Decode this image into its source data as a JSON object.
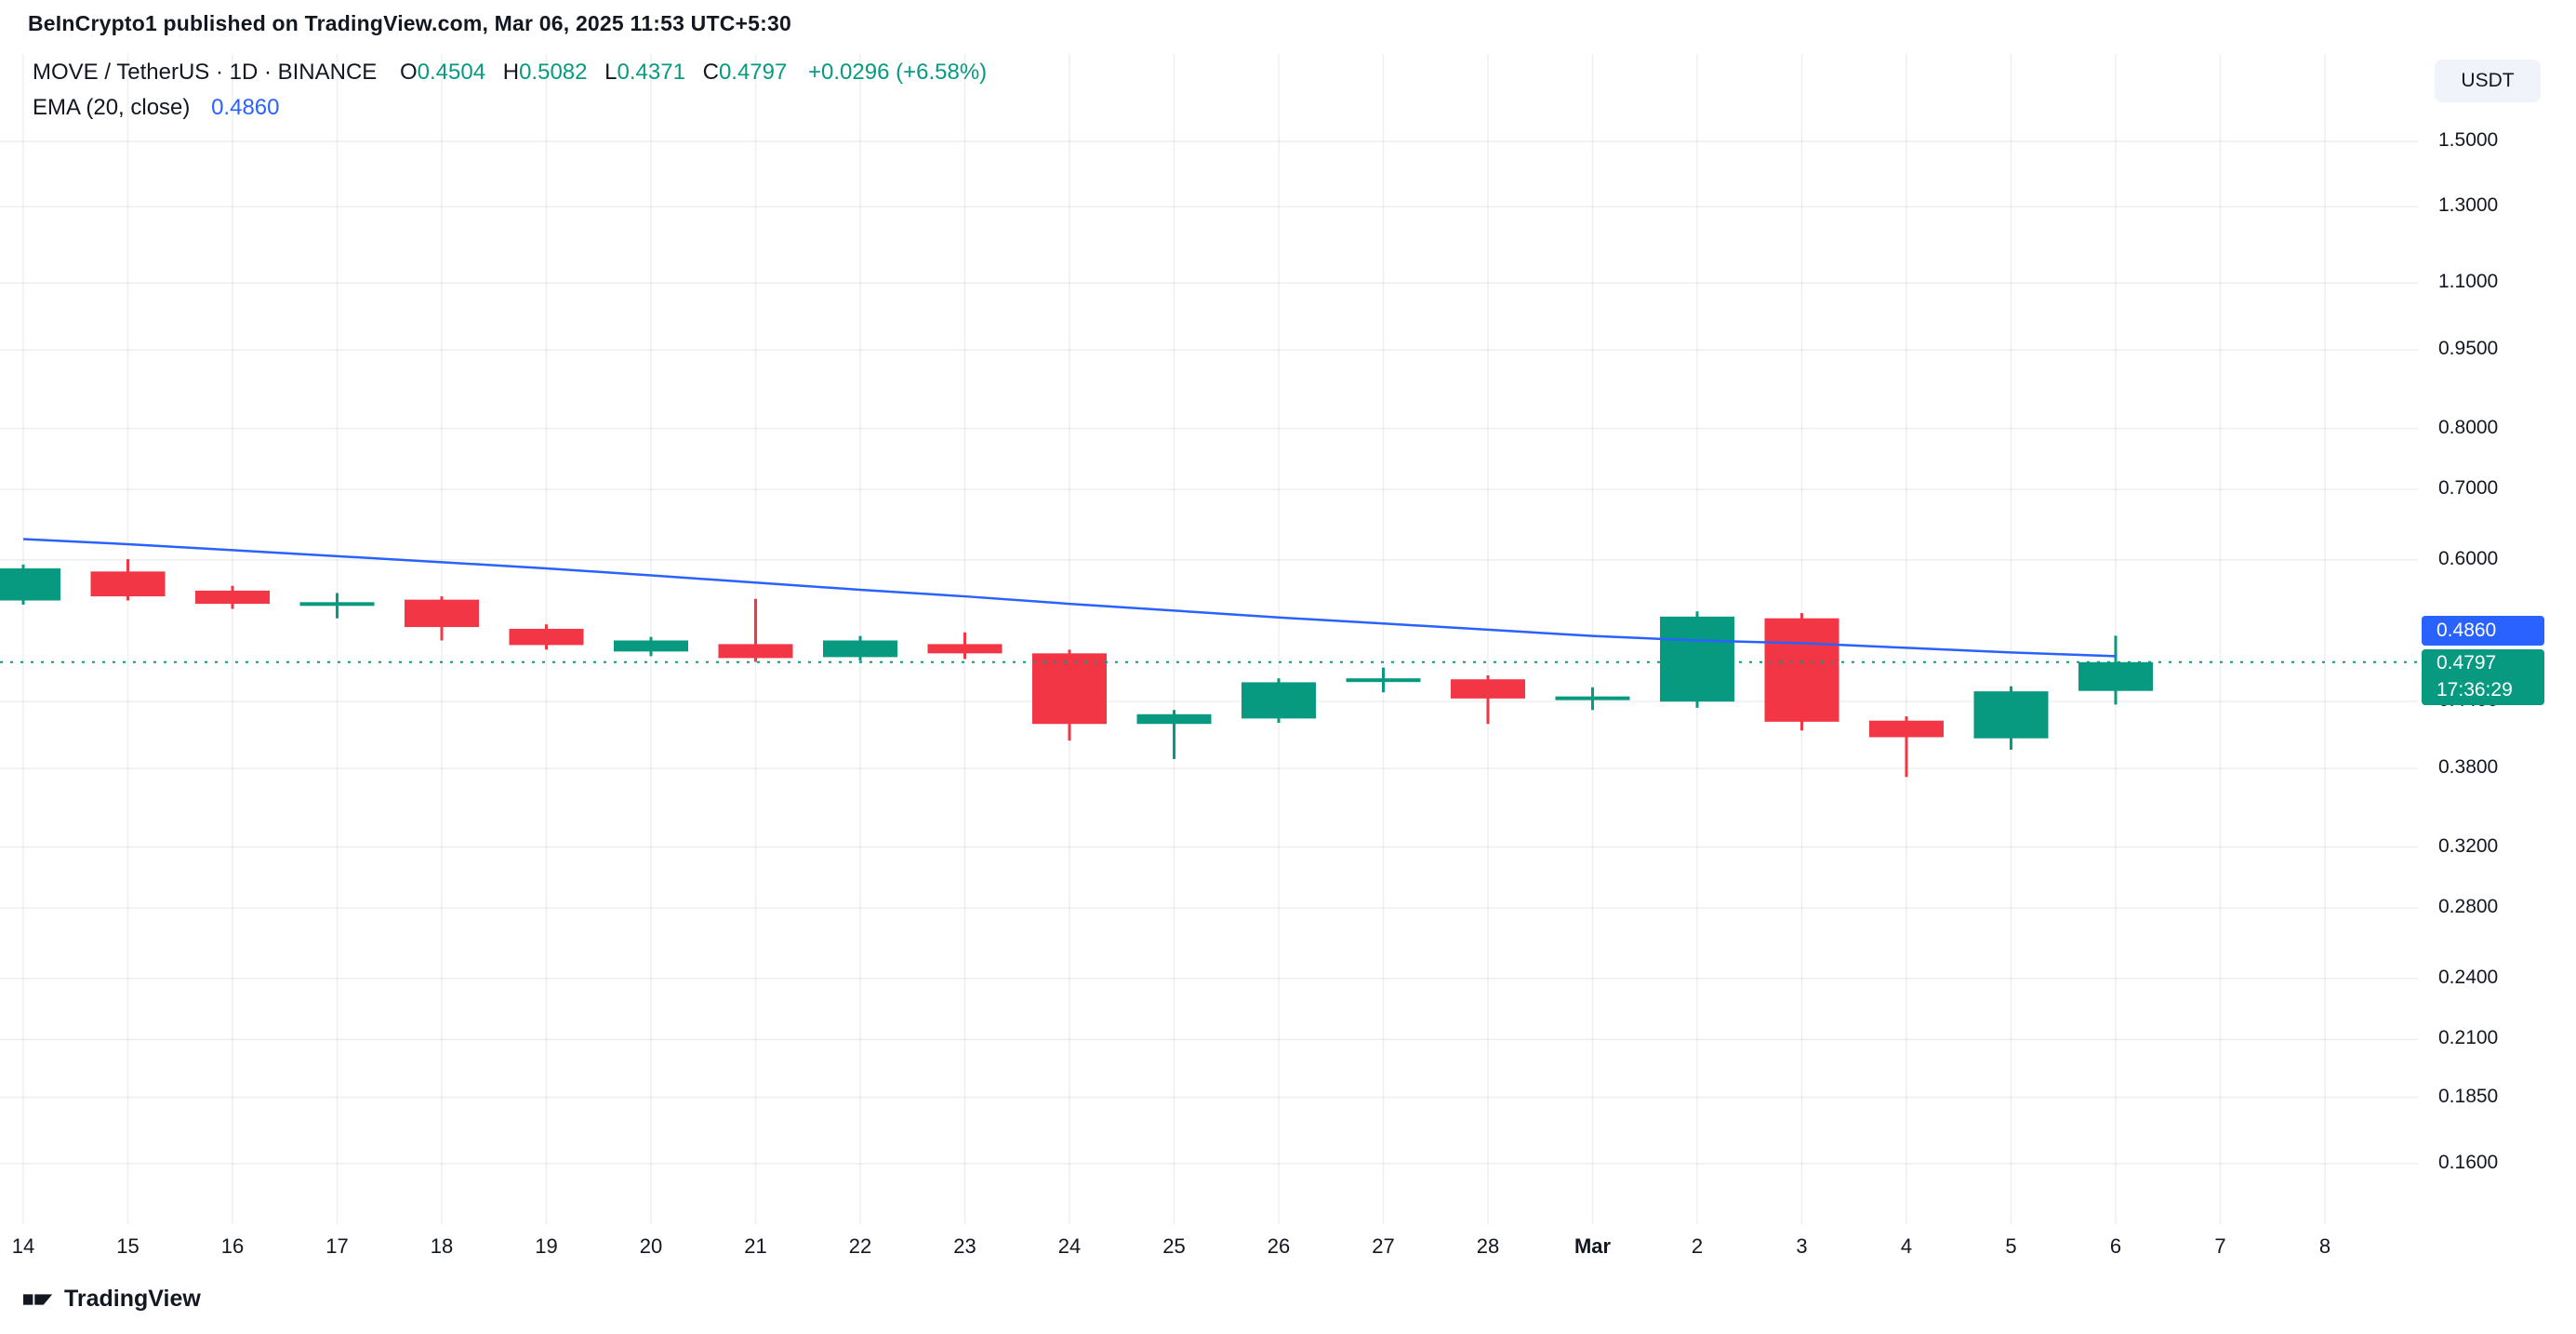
{
  "header": {
    "attribution": "BeInCrypto1 published on TradingView.com, Mar 06, 2025 11:53 UTC+5:30"
  },
  "top_right": {
    "currency_button": "USDT"
  },
  "legend": {
    "symbol_line": {
      "title": "MOVE / TetherUS · 1D · BINANCE",
      "open_label": "O",
      "open_value": "0.4504",
      "high_label": "H",
      "high_value": "0.5082",
      "low_label": "L",
      "low_value": "0.4371",
      "close_label": "C",
      "close_value": "0.4797",
      "change": "+0.0296 (+6.58%)"
    },
    "indicator_line": {
      "name": "EMA (20, close)",
      "value": "0.4860"
    }
  },
  "price_scale": {
    "ema_badge_value": "0.4860",
    "last_badge_price": "0.4797",
    "last_badge_countdown": "17:36:29"
  },
  "footer": {
    "brand": "TradingView"
  },
  "chart_data": {
    "type": "candlestick",
    "title": "MOVE / TetherUS · 1D · BINANCE",
    "pair": "MOVE/USDT",
    "interval": "1D",
    "exchange": "BINANCE",
    "scale": "logarithmic",
    "y_ticks": [
      {
        "label": "1.5000",
        "value": 1.5
      },
      {
        "label": "1.3000",
        "value": 1.3
      },
      {
        "label": "1.1000",
        "value": 1.1
      },
      {
        "label": "0.9500",
        "value": 0.95
      },
      {
        "label": "0.8000",
        "value": 0.8
      },
      {
        "label": "0.7000",
        "value": 0.7
      },
      {
        "label": "0.6000",
        "value": 0.6
      },
      {
        "label": "0.4400",
        "value": 0.44
      },
      {
        "label": "0.3800",
        "value": 0.38
      },
      {
        "label": "0.3200",
        "value": 0.32
      },
      {
        "label": "0.2800",
        "value": 0.28
      },
      {
        "label": "0.2400",
        "value": 0.24
      },
      {
        "label": "0.2100",
        "value": 0.21
      },
      {
        "label": "0.1850",
        "value": 0.185
      },
      {
        "label": "0.1600",
        "value": 0.16
      }
    ],
    "x_labels": [
      {
        "label": "14"
      },
      {
        "label": "15"
      },
      {
        "label": "16"
      },
      {
        "label": "17"
      },
      {
        "label": "18"
      },
      {
        "label": "19"
      },
      {
        "label": "20"
      },
      {
        "label": "21"
      },
      {
        "label": "22"
      },
      {
        "label": "23"
      },
      {
        "label": "24"
      },
      {
        "label": "25"
      },
      {
        "label": "26"
      },
      {
        "label": "27"
      },
      {
        "label": "28"
      },
      {
        "label": "Mar",
        "bold": true
      },
      {
        "label": "2"
      },
      {
        "label": "3"
      },
      {
        "label": "4"
      },
      {
        "label": "5"
      },
      {
        "label": "6"
      },
      {
        "label": "7"
      },
      {
        "label": "8"
      }
    ],
    "candles": [
      {
        "date": "Feb 14",
        "open": 0.549,
        "high": 0.594,
        "low": 0.544,
        "close": 0.589
      },
      {
        "date": "Feb 15",
        "open": 0.585,
        "high": 0.601,
        "low": 0.549,
        "close": 0.554
      },
      {
        "date": "Feb 16",
        "open": 0.561,
        "high": 0.567,
        "low": 0.539,
        "close": 0.545
      },
      {
        "date": "Feb 17",
        "open": 0.543,
        "high": 0.558,
        "low": 0.528,
        "close": 0.547
      },
      {
        "date": "Feb 18",
        "open": 0.55,
        "high": 0.554,
        "low": 0.503,
        "close": 0.518
      },
      {
        "date": "Feb 19",
        "open": 0.516,
        "high": 0.521,
        "low": 0.493,
        "close": 0.498
      },
      {
        "date": "Feb 20",
        "open": 0.491,
        "high": 0.507,
        "low": 0.486,
        "close": 0.503
      },
      {
        "date": "Feb 21",
        "open": 0.499,
        "high": 0.551,
        "low": 0.48,
        "close": 0.484
      },
      {
        "date": "Feb 22",
        "open": 0.485,
        "high": 0.508,
        "low": 0.481,
        "close": 0.503
      },
      {
        "date": "Feb 23",
        "open": 0.499,
        "high": 0.512,
        "low": 0.483,
        "close": 0.489
      },
      {
        "date": "Feb 24",
        "open": 0.489,
        "high": 0.493,
        "low": 0.404,
        "close": 0.419
      },
      {
        "date": "Feb 25",
        "open": 0.419,
        "high": 0.432,
        "low": 0.388,
        "close": 0.428
      },
      {
        "date": "Feb 26",
        "open": 0.424,
        "high": 0.463,
        "low": 0.42,
        "close": 0.459
      },
      {
        "date": "Feb 27",
        "open": 0.46,
        "high": 0.474,
        "low": 0.449,
        "close": 0.463
      },
      {
        "date": "Feb 28",
        "open": 0.462,
        "high": 0.466,
        "low": 0.419,
        "close": 0.443
      },
      {
        "date": "Mar 1",
        "open": 0.443,
        "high": 0.454,
        "low": 0.432,
        "close": 0.445
      },
      {
        "date": "Mar 2",
        "open": 0.44,
        "high": 0.536,
        "low": 0.434,
        "close": 0.53
      },
      {
        "date": "Mar 3",
        "open": 0.528,
        "high": 0.534,
        "low": 0.413,
        "close": 0.421
      },
      {
        "date": "Mar 4",
        "open": 0.422,
        "high": 0.426,
        "low": 0.373,
        "close": 0.407
      },
      {
        "date": "Mar 5",
        "open": 0.406,
        "high": 0.455,
        "low": 0.396,
        "close": 0.45
      },
      {
        "date": "Mar 6",
        "open": 0.4504,
        "high": 0.5082,
        "low": 0.4371,
        "close": 0.4797
      }
    ],
    "ema20": [
      0.628,
      0.621,
      0.613,
      0.605,
      0.597,
      0.589,
      0.58,
      0.571,
      0.562,
      0.554,
      0.545,
      0.537,
      0.529,
      0.522,
      0.515,
      0.508,
      0.503,
      0.5,
      0.495,
      0.49,
      0.486
    ],
    "ema_last": 0.486,
    "last_close": 0.4797,
    "countdown": "17:36:29",
    "legend_note": "grid on, log price scale, EMA(20) line, dotted last-price line",
    "colors": {
      "up": "#089981",
      "down": "#F23645",
      "ema": "#2962FF",
      "grid": "rgba(42,46,57,0.08)",
      "axis_text": "#131722"
    }
  }
}
